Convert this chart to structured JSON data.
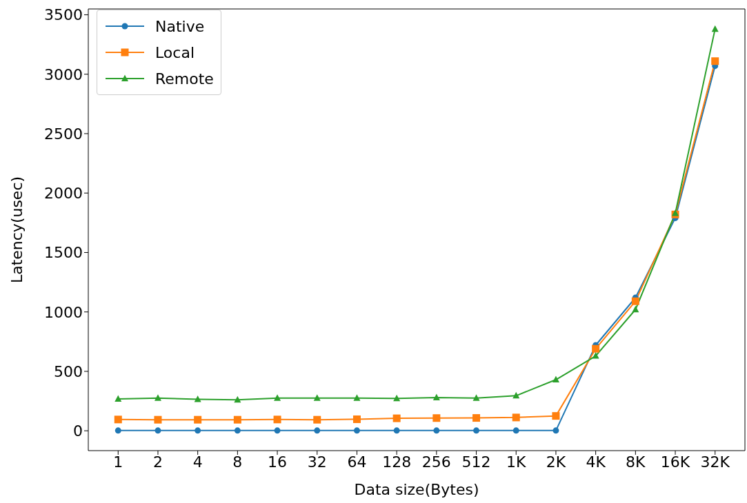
{
  "chart_data": {
    "type": "line",
    "xlabel": "Data size(Bytes)",
    "ylabel": "Latency(usec)",
    "categories": [
      "1",
      "2",
      "4",
      "8",
      "16",
      "32",
      "64",
      "128",
      "256",
      "512",
      "1K",
      "2K",
      "4K",
      "8K",
      "16K",
      "32K"
    ],
    "ylim": [
      -167,
      3549
    ],
    "yticks": [
      0,
      500,
      1000,
      1500,
      2000,
      2500,
      3000,
      3500
    ],
    "legend": "top left",
    "grid": false,
    "series": [
      {
        "name": "Native",
        "color": "#1f77b4",
        "marker": "circle",
        "values": [
          2,
          2,
          2,
          2,
          2,
          2,
          2,
          2,
          2,
          2,
          2,
          2,
          720,
          1120,
          1790,
          3070
        ]
      },
      {
        "name": "Local",
        "color": "#ff7f0e",
        "marker": "square",
        "values": [
          95,
          93,
          93,
          93,
          95,
          93,
          97,
          105,
          107,
          108,
          112,
          125,
          690,
          1090,
          1820,
          3110
        ]
      },
      {
        "name": "Remote",
        "color": "#2ca02c",
        "marker": "triangle",
        "values": [
          268,
          275,
          265,
          260,
          275,
          275,
          275,
          272,
          280,
          275,
          295,
          430,
          630,
          1020,
          1830,
          3380
        ]
      }
    ]
  }
}
